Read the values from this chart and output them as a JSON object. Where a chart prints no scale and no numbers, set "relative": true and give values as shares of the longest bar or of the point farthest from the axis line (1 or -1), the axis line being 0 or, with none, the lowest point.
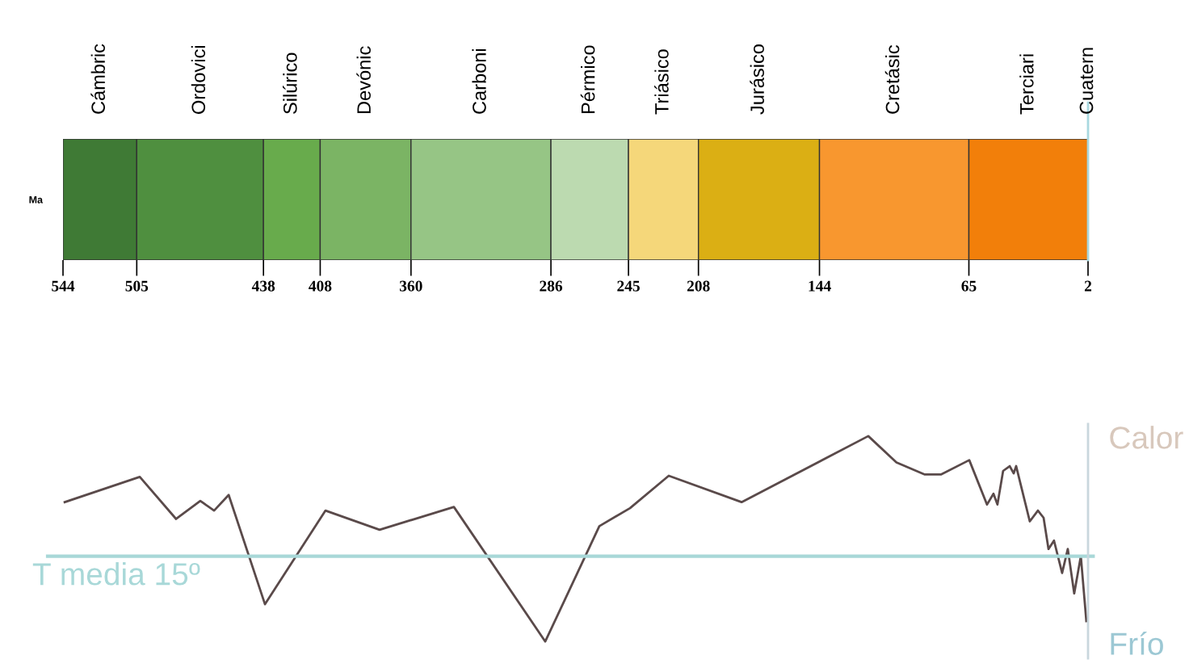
{
  "chart_data": [
    {
      "type": "bar",
      "orientation": "horizontal",
      "categories": [
        "Ma"
      ],
      "xlim": [
        544,
        2
      ],
      "xticks": [
        544,
        505,
        438,
        408,
        360,
        286,
        245,
        208,
        144,
        65,
        2
      ],
      "legend": false,
      "series": [
        {
          "name": "Cámbric",
          "color": "#3f7a35",
          "base": [
            505
          ],
          "values": [
            39
          ]
        },
        {
          "name": "Ordovici",
          "color": "#4f8f3f",
          "base": [
            438
          ],
          "values": [
            67
          ]
        },
        {
          "name": "Silúrico",
          "color": "#68ab4c",
          "base": [
            408
          ],
          "values": [
            30
          ]
        },
        {
          "name": "Devónic",
          "color": "#7bb464",
          "base": [
            360
          ],
          "values": [
            48
          ]
        },
        {
          "name": "Carboni",
          "color": "#96c585",
          "base": [
            286
          ],
          "values": [
            74
          ]
        },
        {
          "name": "Pérmico",
          "color": "#bcdab0",
          "base": [
            245
          ],
          "values": [
            41
          ]
        },
        {
          "name": "Triásico",
          "color": "#f5d77a",
          "base": [
            208
          ],
          "values": [
            37
          ]
        },
        {
          "name": "Jurásico",
          "color": "#dbaf14",
          "base": [
            144
          ],
          "values": [
            64
          ]
        },
        {
          "name": "Cretásic",
          "color": "#f8972f",
          "base": [
            65
          ],
          "values": [
            79
          ]
        },
        {
          "name": "Terciari",
          "color": "#f27f0a",
          "base": [
            2
          ],
          "values": [
            63
          ]
        }
      ],
      "ref_lines": [
        {
          "axis": "x",
          "value": 2,
          "label": "Cuatern",
          "color": "#a8d8e0"
        }
      ]
    },
    {
      "type": "line",
      "relative": true,
      "xlim": [
        544,
        2
      ],
      "tick_labels": false,
      "legend": false,
      "line_style": "solid",
      "series": [
        {
          "color": "#5a4a4a",
          "x": [
            543.1,
            503.4,
            484.2,
            471.4,
            464.1,
            456.4,
            437.2,
            405.2,
            376.6,
            337.3,
            289.0,
            260.4,
            244.2,
            223.7,
            185.2,
            118.2,
            103.3,
            88.3,
            79.8,
            64.8,
            55.4,
            52.0,
            49.9,
            46.9,
            43.4,
            41.3,
            40.0,
            32.8,
            28.5,
            25.5,
            22.9,
            20.0,
            15.7,
            12.7,
            9.3,
            5.8,
            2.9
          ],
          "values": [
            0.45,
            0.66,
            0.31,
            0.46,
            0.38,
            0.51,
            -0.4,
            0.38,
            0.22,
            0.41,
            -0.71,
            0.25,
            0.4,
            0.67,
            0.45,
            1.0,
            0.78,
            0.68,
            0.68,
            0.8,
            0.43,
            0.52,
            0.43,
            0.71,
            0.75,
            0.69,
            0.75,
            0.29,
            0.38,
            0.32,
            0.06,
            0.13,
            -0.14,
            0.06,
            -0.31,
            0.0,
            -0.54
          ]
        }
      ],
      "ref_lines": [
        {
          "axis": "y",
          "value": 0,
          "label": "T media 15º",
          "color": "#a8d8d8"
        }
      ],
      "annotations": [
        "Calor",
        "Frío"
      ]
    }
  ]
}
